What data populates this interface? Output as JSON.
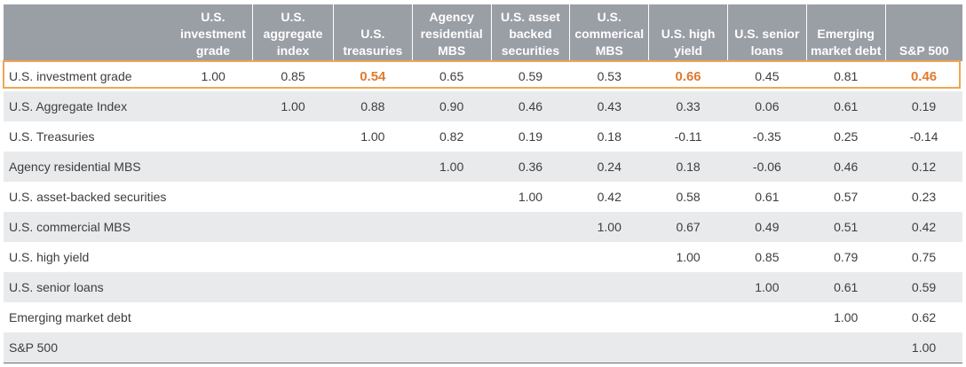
{
  "chart_data": {
    "type": "table",
    "title": "",
    "columns": [
      "U.S. investment grade",
      "U.S. aggregate index",
      "U.S. treasuries",
      "Agency residential MBS",
      "U.S. asset backed securities",
      "U.S. commerical MBS",
      "U.S. high yield",
      "U.S. senior loans",
      "Emerging market debt",
      "S&P 500"
    ],
    "rows": [
      {
        "label": "U.S. investment grade",
        "values": [
          "1.00",
          "0.85",
          "0.54",
          "0.65",
          "0.59",
          "0.53",
          "0.66",
          "0.45",
          "0.81",
          "0.46"
        ]
      },
      {
        "label": "U.S. Aggregate Index",
        "values": [
          "",
          "1.00",
          "0.88",
          "0.90",
          "0.46",
          "0.43",
          "0.33",
          "0.06",
          "0.61",
          "0.19"
        ]
      },
      {
        "label": "U.S. Treasuries",
        "values": [
          "",
          "",
          "1.00",
          "0.82",
          "0.19",
          "0.18",
          "-0.11",
          "-0.35",
          "0.25",
          "-0.14"
        ]
      },
      {
        "label": "Agency residential MBS",
        "values": [
          "",
          "",
          "",
          "1.00",
          "0.36",
          "0.24",
          "0.18",
          "-0.06",
          "0.46",
          "0.12"
        ]
      },
      {
        "label": "U.S. asset-backed securities",
        "values": [
          "",
          "",
          "",
          "",
          "1.00",
          "0.42",
          "0.58",
          "0.61",
          "0.57",
          "0.23"
        ]
      },
      {
        "label": "U.S. commercial MBS",
        "values": [
          "",
          "",
          "",
          "",
          "",
          "1.00",
          "0.67",
          "0.49",
          "0.51",
          "0.42"
        ]
      },
      {
        "label": "U.S. high yield",
        "values": [
          "",
          "",
          "",
          "",
          "",
          "",
          "1.00",
          "0.85",
          "0.79",
          "0.75"
        ]
      },
      {
        "label": "U.S. senior loans",
        "values": [
          "",
          "",
          "",
          "",
          "",
          "",
          "",
          "1.00",
          "0.61",
          "0.59"
        ]
      },
      {
        "label": "Emerging market debt",
        "values": [
          "",
          "",
          "",
          "",
          "",
          "",
          "",
          "",
          "1.00",
          "0.62"
        ]
      },
      {
        "label": "S&P 500",
        "values": [
          "",
          "",
          "",
          "",
          "",
          "",
          "",
          "",
          "",
          "1.00"
        ]
      }
    ],
    "highlighted_row": 0,
    "highlighted_cells": [
      [
        0,
        2
      ],
      [
        0,
        6
      ],
      [
        0,
        9
      ]
    ],
    "colors": {
      "header_bg": "#9a9ea5",
      "header_text": "#ffffff",
      "stripe": "#e9eaec",
      "highlight": "#e07a2e",
      "highlight_border": "#f0a553"
    }
  }
}
